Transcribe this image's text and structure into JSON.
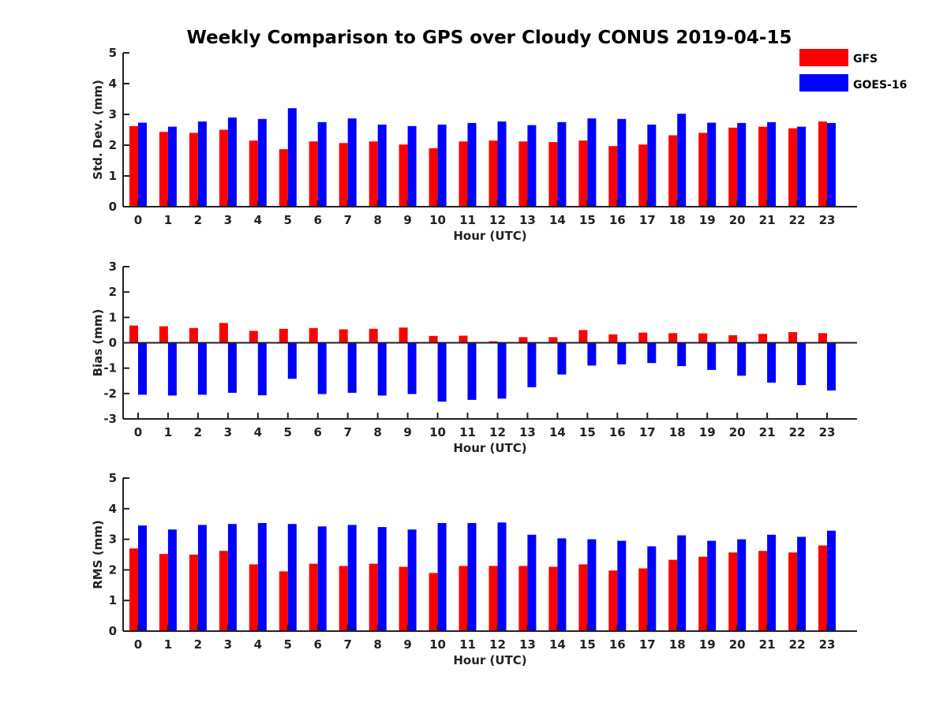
{
  "title": "Weekly Comparison to GPS over Cloudy CONUS 2019-04-15",
  "colors": {
    "GFS": "#ff0000",
    "GOES-16": "#0000ff"
  },
  "legend": {
    "placement": "top-right",
    "entries": [
      "GFS",
      "GOES-16"
    ]
  },
  "chart_data": [
    {
      "type": "bar",
      "categories": [
        "0",
        "1",
        "2",
        "3",
        "4",
        "5",
        "6",
        "7",
        "8",
        "9",
        "10",
        "11",
        "12",
        "13",
        "14",
        "15",
        "16",
        "17",
        "18",
        "19",
        "20",
        "21",
        "22",
        "23"
      ],
      "xlabel": "Hour (UTC)",
      "ylabel": "Std. Dev. (mm)",
      "ylim": [
        0,
        5
      ],
      "yticks": [
        0,
        1,
        2,
        3,
        4,
        5
      ],
      "grid": false,
      "series": [
        {
          "name": "GFS",
          "values": [
            2.62,
            2.43,
            2.4,
            2.5,
            2.15,
            1.87,
            2.12,
            2.07,
            2.12,
            2.02,
            1.9,
            2.12,
            2.15,
            2.12,
            2.1,
            2.15,
            1.97,
            2.02,
            2.32,
            2.4,
            2.57,
            2.6,
            2.55,
            2.77
          ]
        },
        {
          "name": "GOES-16",
          "values": [
            2.73,
            2.6,
            2.77,
            2.9,
            2.85,
            3.2,
            2.75,
            2.87,
            2.67,
            2.62,
            2.67,
            2.72,
            2.77,
            2.65,
            2.75,
            2.87,
            2.85,
            2.67,
            3.02,
            2.73,
            2.72,
            2.75,
            2.6,
            2.72
          ]
        }
      ]
    },
    {
      "type": "bar",
      "categories": [
        "0",
        "1",
        "2",
        "3",
        "4",
        "5",
        "6",
        "7",
        "8",
        "9",
        "10",
        "11",
        "12",
        "13",
        "14",
        "15",
        "16",
        "17",
        "18",
        "19",
        "20",
        "21",
        "22",
        "23"
      ],
      "xlabel": "Hour (UTC)",
      "ylabel": "Bias (mm)",
      "ylim": [
        -3,
        3
      ],
      "yticks": [
        -3,
        -2,
        -1,
        0,
        1,
        2,
        3
      ],
      "grid": false,
      "series": [
        {
          "name": "GFS",
          "values": [
            0.68,
            0.65,
            0.58,
            0.78,
            0.47,
            0.55,
            0.58,
            0.53,
            0.55,
            0.6,
            0.27,
            0.28,
            0.06,
            0.22,
            0.22,
            0.5,
            0.33,
            0.4,
            0.38,
            0.37,
            0.3,
            0.35,
            0.42,
            0.38
          ]
        },
        {
          "name": "GOES-16",
          "values": [
            -2.05,
            -2.08,
            -2.05,
            -1.97,
            -2.07,
            -1.42,
            -2.02,
            -1.97,
            -2.08,
            -2.02,
            -2.32,
            -2.25,
            -2.2,
            -1.75,
            -1.25,
            -0.9,
            -0.85,
            -0.8,
            -0.92,
            -1.07,
            -1.3,
            -1.57,
            -1.67,
            -1.88
          ]
        }
      ]
    },
    {
      "type": "bar",
      "categories": [
        "0",
        "1",
        "2",
        "3",
        "4",
        "5",
        "6",
        "7",
        "8",
        "9",
        "10",
        "11",
        "12",
        "13",
        "14",
        "15",
        "16",
        "17",
        "18",
        "19",
        "20",
        "21",
        "22",
        "23"
      ],
      "xlabel": "Hour (UTC)",
      "ylabel": "RMS (mm)",
      "ylim": [
        0,
        5
      ],
      "yticks": [
        0,
        1,
        2,
        3,
        4,
        5
      ],
      "grid": false,
      "series": [
        {
          "name": "GFS",
          "values": [
            2.7,
            2.52,
            2.5,
            2.62,
            2.18,
            1.95,
            2.2,
            2.13,
            2.2,
            2.1,
            1.9,
            2.13,
            2.13,
            2.13,
            2.1,
            2.18,
            1.98,
            2.05,
            2.33,
            2.43,
            2.57,
            2.62,
            2.57,
            2.8
          ]
        },
        {
          "name": "GOES-16",
          "values": [
            3.45,
            3.32,
            3.47,
            3.5,
            3.53,
            3.5,
            3.42,
            3.47,
            3.4,
            3.32,
            3.53,
            3.53,
            3.55,
            3.15,
            3.03,
            3.0,
            2.95,
            2.77,
            3.13,
            2.95,
            3.0,
            3.15,
            3.08,
            3.28
          ]
        }
      ]
    }
  ]
}
